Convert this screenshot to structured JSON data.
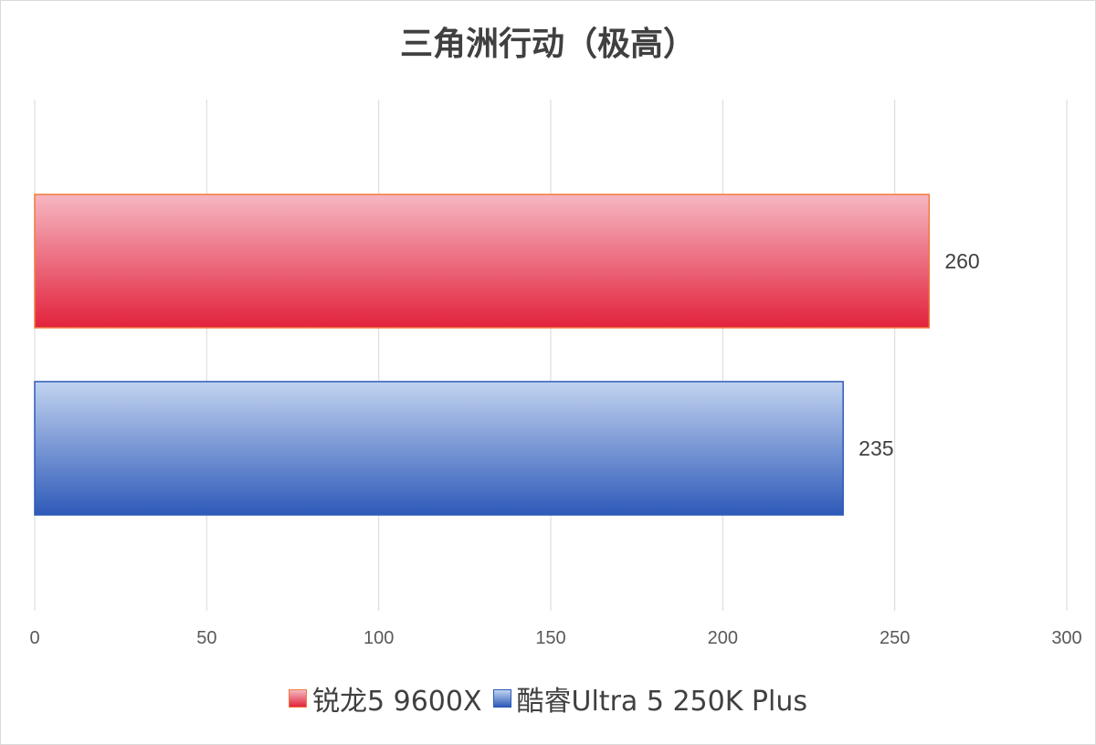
{
  "chart_data": {
    "type": "bar",
    "orientation": "horizontal",
    "title": "三角洲行动（极高）",
    "xlim": [
      0,
      300
    ],
    "xticks": [
      "0",
      "50",
      "100",
      "150",
      "200",
      "250",
      "300"
    ],
    "grid": true,
    "legend_position": "bottom",
    "series": [
      {
        "name": "锐龙5 9600X",
        "value": 260,
        "label": "260",
        "color": "#e2223c",
        "light": "#f6b7c2",
        "edge": "#f07a3c"
      },
      {
        "name": "酷睿Ultra 5 250K Plus",
        "value": 235,
        "label": "235",
        "color": "#2e5ab8",
        "light": "#c2d3f0",
        "edge": "#2e5ab8"
      }
    ]
  }
}
